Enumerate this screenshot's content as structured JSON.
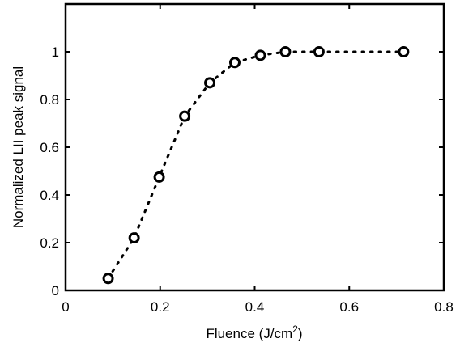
{
  "chart_data": {
    "type": "scatter",
    "title": "",
    "xlabel": "Fluence (J/cm",
    "xlabel_superscript": "2",
    "xlabel_suffix": ")",
    "ylabel": "Normalized LII peak signal",
    "xlim": [
      0,
      0.8
    ],
    "ylim": [
      0,
      1.2
    ],
    "xticks": [
      0,
      0.2,
      0.4,
      0.6,
      0.8
    ],
    "xtick_labels": [
      "0",
      "0.2",
      "0.4",
      "0.6",
      "0.8"
    ],
    "yticks": [
      0,
      0.2,
      0.4,
      0.6,
      0.8,
      1.0
    ],
    "ytick_labels": [
      "0",
      "0.2",
      "0.4",
      "0.6",
      "0.8",
      "1"
    ],
    "grid": false,
    "legend": "none",
    "marker": "open-circle",
    "line_style": "dotted",
    "color": "#000000",
    "series": [
      {
        "x": [
          0.09,
          0.145,
          0.198,
          0.252,
          0.305,
          0.358,
          0.412,
          0.465,
          0.536,
          0.715
        ],
        "y": [
          0.05,
          0.22,
          0.475,
          0.73,
          0.87,
          0.955,
          0.985,
          1.0,
          1.0,
          1.0
        ]
      }
    ]
  }
}
